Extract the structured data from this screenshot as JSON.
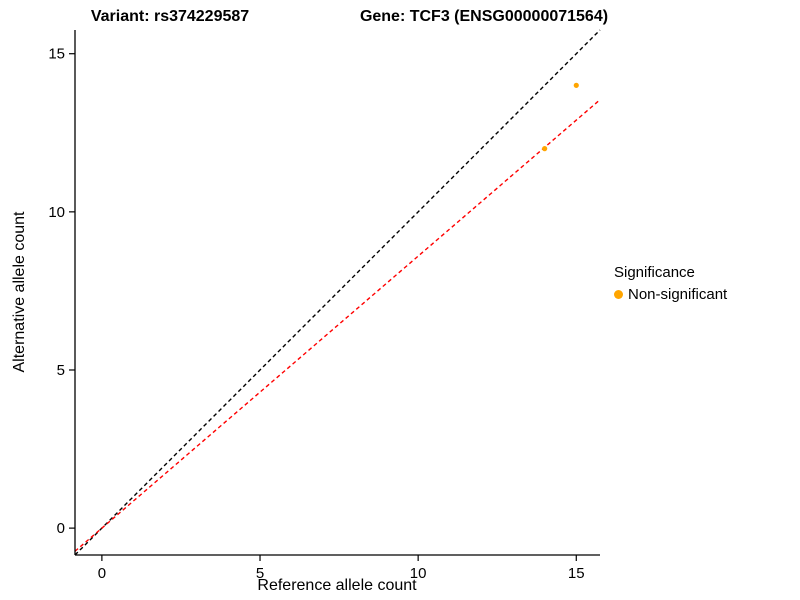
{
  "chart_data": {
    "type": "scatter",
    "title_left": "Variant: rs374229587",
    "title_right": "Gene: TCF3 (ENSG00000071564)",
    "xlabel": "Reference allele count",
    "ylabel": "Alternative allele count",
    "xlim": [
      -0.85,
      15.75
    ],
    "ylim": [
      -0.85,
      15.75
    ],
    "xticks": [
      0,
      5,
      10,
      15
    ],
    "yticks": [
      0,
      5,
      10,
      15
    ],
    "grid": false,
    "point_color": "#FFA500",
    "point_radius": 2.6,
    "points": [
      {
        "x": 14,
        "y": 12,
        "series": "Non-significant"
      },
      {
        "x": 15,
        "y": 14,
        "series": "Non-significant"
      }
    ],
    "lines": [
      {
        "name": "identity",
        "slope": 1.0,
        "intercept": 0,
        "color": "#000000",
        "dash": "4,3"
      },
      {
        "name": "fit",
        "slope": 0.86,
        "intercept": 0,
        "color": "#FF0000",
        "dash": "4,3"
      }
    ],
    "legend": {
      "position": "right",
      "title": "Significance",
      "entries": [
        {
          "label": "Non-significant",
          "color": "#FFA500"
        }
      ]
    },
    "axis_color": "#000000"
  }
}
